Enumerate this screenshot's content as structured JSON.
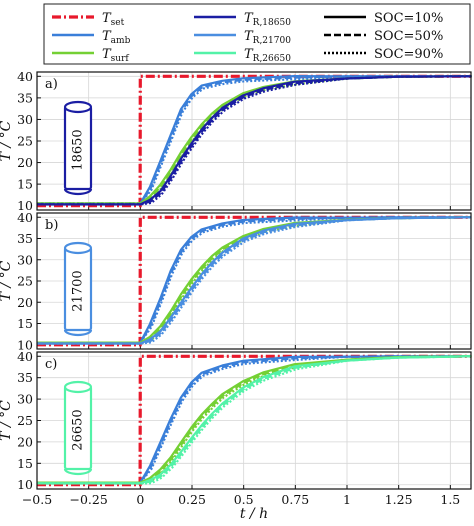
{
  "legend": {
    "entries": [
      {
        "sym": "T",
        "sub": "set",
        "color": "#e8192c",
        "dash": "9,3,2,3",
        "width": 3.2
      },
      {
        "sym": "T",
        "sub": "R,18650",
        "color": "#1b1ea3",
        "dash": "",
        "width": 2.4
      },
      {
        "sym": "",
        "sub": "",
        "text": "SOC=10%",
        "color": "#000000",
        "dash": "",
        "width": 2.4
      },
      {
        "sym": "T",
        "sub": "amb",
        "color": "#3a7fd9",
        "dash": "",
        "width": 2.4
      },
      {
        "sym": "T",
        "sub": "R,21700",
        "color": "#4a8ee0",
        "dash": "",
        "width": 2.4
      },
      {
        "sym": "",
        "sub": "",
        "text": "SOC=50%",
        "color": "#000000",
        "dash": "7,3",
        "width": 2.4
      },
      {
        "sym": "T",
        "sub": "surf",
        "color": "#74d034",
        "dash": "",
        "width": 2.4
      },
      {
        "sym": "T",
        "sub": "R,26650",
        "color": "#53f2a8",
        "dash": "",
        "width": 2.4
      },
      {
        "sym": "",
        "sub": "",
        "text": "SOC=90%",
        "color": "#000000",
        "dash": "2,2",
        "width": 2.4
      }
    ]
  },
  "colors": {
    "set": "#e8192c",
    "amb": "#3a7fd9",
    "surf": "#74d034",
    "r18650": "#1b1ea3",
    "r21700": "#4a8ee0",
    "r26650": "#53f2a8"
  },
  "panels": [
    {
      "label": "a)",
      "cell": "18650",
      "cell_color": "#1b1ea3"
    },
    {
      "label": "b)",
      "cell": "21700",
      "cell_color": "#4a8ee0"
    },
    {
      "label": "c)",
      "cell": "26650",
      "cell_color": "#53f2a8"
    }
  ],
  "ylabel": "T / °C",
  "xlabel": "t / h",
  "chart_data": {
    "type": "line",
    "xlabel": "t / h",
    "ylabel": "T / °C",
    "xlim": [
      -0.5,
      1.6
    ],
    "ylim": [
      9,
      41
    ],
    "xticks": [
      -0.5,
      -0.25,
      0,
      0.25,
      0.5,
      0.75,
      1,
      1.25,
      1.5
    ],
    "xtick_labels": [
      "−0.5",
      "−0.25",
      "0",
      "0.25",
      "0.5",
      "0.75",
      "1",
      "1.25",
      "1.5"
    ],
    "yticks": [
      10,
      15,
      20,
      25,
      30,
      35,
      40
    ],
    "grid": true,
    "legend_position": "top",
    "panels": [
      {
        "label": "a)",
        "series": [
          {
            "name": "T_set",
            "x": [
              -0.5,
              -0.001,
              0.0,
              1.6
            ],
            "y": [
              10,
              10,
              40,
              40
            ]
          },
          {
            "name": "T_amb",
            "x": [
              -0.5,
              0,
              0.05,
              0.1,
              0.15,
              0.2,
              0.25,
              0.3,
              0.4,
              0.5,
              0.75,
              1.0,
              1.25,
              1.6
            ],
            "y": [
              10.5,
              10.5,
              14,
              20,
              26,
              32,
              35.5,
              37.5,
              38.6,
              39.2,
              39.7,
              40,
              40,
              40
            ]
          },
          {
            "name": "T_surf",
            "x": [
              -0.5,
              0,
              0.05,
              0.1,
              0.15,
              0.2,
              0.25,
              0.3,
              0.35,
              0.4,
              0.5,
              0.6,
              0.75,
              1.0,
              1.25,
              1.6
            ],
            "y": [
              10.5,
              10.5,
              11.8,
              14.5,
              18,
              22,
              25.5,
              28.5,
              31,
              33,
              35.7,
              37.2,
              38.5,
              39.5,
              39.9,
              40
            ]
          },
          {
            "name": "T_R,18650",
            "x": [
              -0.5,
              0,
              0.05,
              0.1,
              0.15,
              0.2,
              0.25,
              0.3,
              0.35,
              0.4,
              0.5,
              0.6,
              0.75,
              1.0,
              1.25,
              1.6
            ],
            "y": [
              10.3,
              10.3,
              11,
              13,
              16.5,
              20.5,
              24,
              27.3,
              30,
              32.3,
              35.2,
              36.9,
              38.4,
              39.5,
              39.9,
              40
            ]
          }
        ]
      },
      {
        "label": "b)",
        "series": [
          {
            "name": "T_set",
            "x": [
              -0.5,
              -0.001,
              0.0,
              1.6
            ],
            "y": [
              10,
              10,
              40,
              40
            ]
          },
          {
            "name": "T_amb",
            "x": [
              -0.5,
              0,
              0.05,
              0.1,
              0.15,
              0.2,
              0.25,
              0.3,
              0.4,
              0.5,
              0.75,
              1.0,
              1.25,
              1.6
            ],
            "y": [
              10.5,
              10.5,
              14.5,
              20.5,
              27,
              32,
              35,
              36.8,
              38.2,
              39,
              39.6,
              39.9,
              40,
              40
            ]
          },
          {
            "name": "T_surf",
            "x": [
              -0.5,
              0,
              0.05,
              0.1,
              0.15,
              0.2,
              0.25,
              0.3,
              0.35,
              0.4,
              0.5,
              0.6,
              0.75,
              1.0,
              1.25,
              1.6
            ],
            "y": [
              10.5,
              10.5,
              11.5,
              14,
              17.5,
              21.5,
              25,
              28,
              30.5,
              32.5,
              35.2,
              36.9,
              38.3,
              39.4,
              39.8,
              40
            ]
          },
          {
            "name": "T_R,21700",
            "x": [
              -0.5,
              0,
              0.05,
              0.1,
              0.15,
              0.2,
              0.25,
              0.3,
              0.35,
              0.4,
              0.5,
              0.6,
              0.75,
              1.0,
              1.25,
              1.6
            ],
            "y": [
              10.3,
              10.3,
              10.9,
              12.8,
              16,
              19.5,
              23,
              26.2,
              29,
              31.3,
              34.6,
              36.5,
              38.1,
              39.3,
              39.8,
              40
            ]
          }
        ]
      },
      {
        "label": "c)",
        "series": [
          {
            "name": "T_set",
            "x": [
              -0.5,
              -0.001,
              0.0,
              1.6
            ],
            "y": [
              10,
              10,
              40,
              40
            ]
          },
          {
            "name": "T_amb",
            "x": [
              -0.5,
              0,
              0.05,
              0.1,
              0.15,
              0.2,
              0.25,
              0.3,
              0.4,
              0.5,
              0.75,
              1.0,
              1.25,
              1.6
            ],
            "y": [
              10.5,
              10.5,
              14,
              19.5,
              25,
              30,
              33.5,
              35.8,
              37.5,
              38.6,
              39.5,
              39.9,
              40,
              40
            ]
          },
          {
            "name": "T_surf",
            "x": [
              -0.5,
              0,
              0.05,
              0.1,
              0.15,
              0.2,
              0.25,
              0.3,
              0.35,
              0.4,
              0.5,
              0.6,
              0.75,
              1.0,
              1.25,
              1.6
            ],
            "y": [
              10.5,
              10.5,
              11.2,
              13.2,
              16,
              19.5,
              23,
              26,
              28.5,
              30.8,
              33.8,
              35.9,
              37.8,
              39.2,
              39.8,
              40
            ]
          },
          {
            "name": "T_R,26650",
            "x": [
              -0.5,
              0,
              0.05,
              0.1,
              0.15,
              0.2,
              0.25,
              0.3,
              0.35,
              0.4,
              0.5,
              0.6,
              0.75,
              1.0,
              1.25,
              1.6
            ],
            "y": [
              10.3,
              10.3,
              10.7,
              12,
              14.3,
              17.3,
              20.5,
              23.5,
              26.2,
              28.6,
              32.3,
              34.8,
              37.3,
              39,
              39.7,
              40
            ]
          }
        ]
      }
    ]
  }
}
